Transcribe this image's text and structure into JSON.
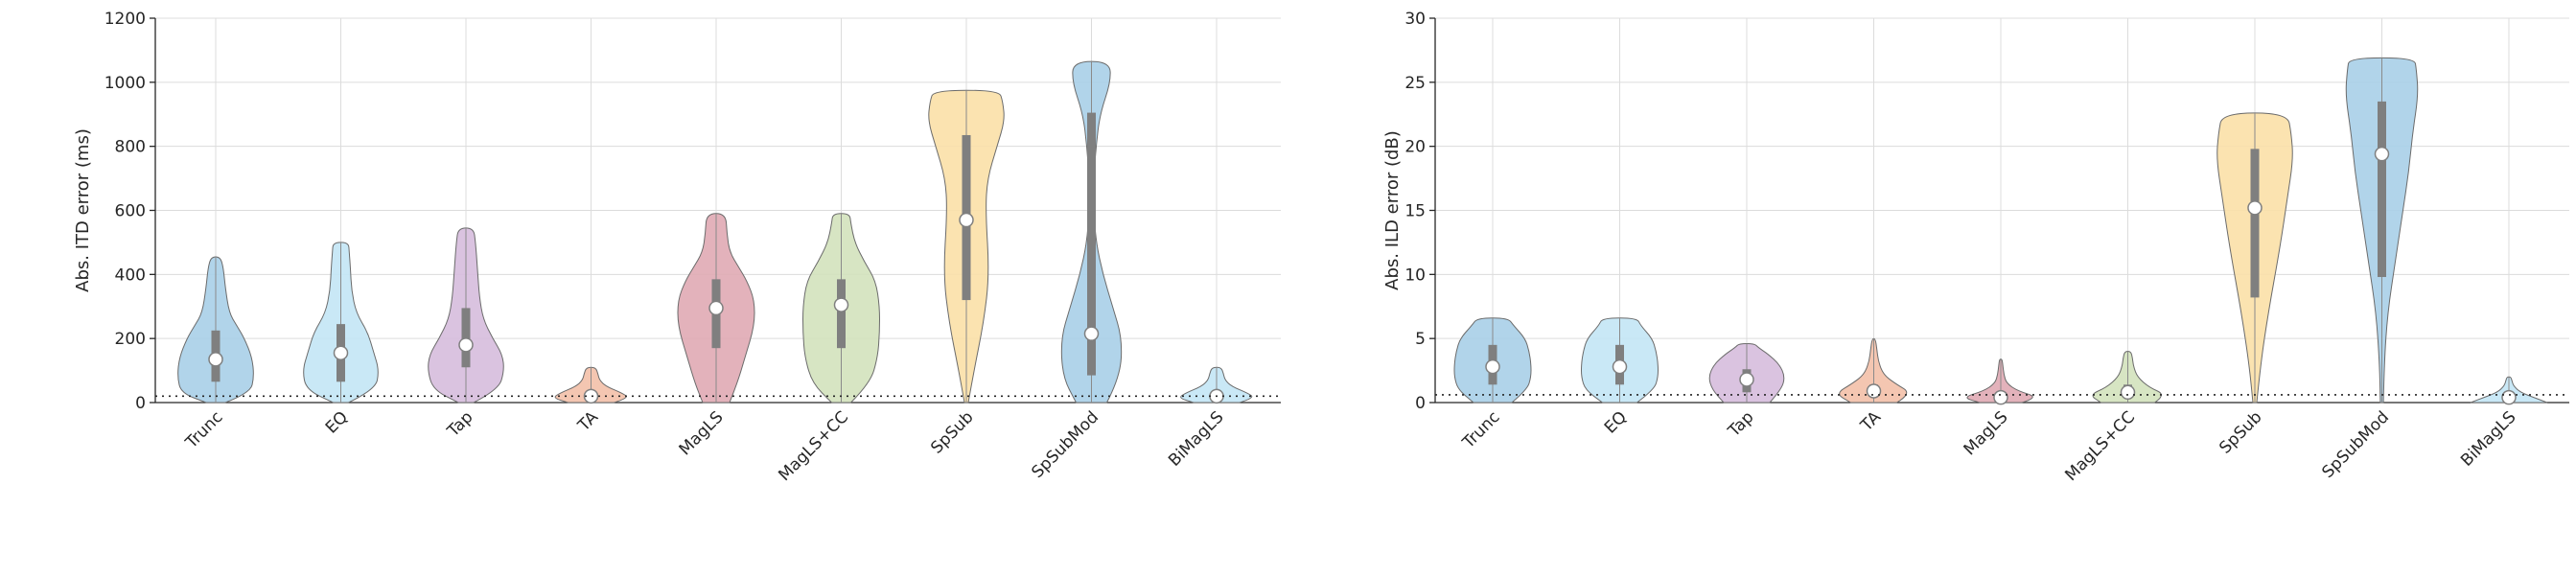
{
  "chart_data": [
    {
      "type": "violin",
      "title": "",
      "xlabel": "",
      "ylabel": "Abs. ITD error (ms)",
      "ylim": [
        0,
        1200
      ],
      "yticks": [
        0,
        200,
        400,
        600,
        800,
        1000,
        1200
      ],
      "grid": true,
      "threshold": 20,
      "categories": [
        "Trunc",
        "EQ",
        "Tap",
        "TA",
        "MagLS",
        "MagLS+CC",
        "SpSub",
        "SpSubMod",
        "BiMagLS"
      ],
      "colors": [
        "#a9cfe8",
        "#c3e6f5",
        "#d6bcdd",
        "#f3c0a9",
        "#e0aab4",
        "#d3e2bd",
        "#fbe0a7",
        "#a9cfe8",
        "#c3e6f5"
      ],
      "max": [
        455,
        500,
        545,
        110,
        590,
        590,
        975,
        1065,
        110
      ],
      "min": [
        0,
        0,
        0,
        0,
        0,
        0,
        0,
        0,
        0
      ],
      "q1": [
        65,
        65,
        110,
        15,
        170,
        170,
        320,
        85,
        15
      ],
      "median": [
        135,
        155,
        180,
        20,
        295,
        305,
        570,
        215,
        20
      ],
      "q3": [
        225,
        245,
        295,
        30,
        385,
        385,
        835,
        905,
        30
      ],
      "density": [
        [
          [
            0,
            0.25
          ],
          [
            30,
            0.9
          ],
          [
            80,
            1
          ],
          [
            140,
            0.95
          ],
          [
            200,
            0.75
          ],
          [
            240,
            0.55
          ],
          [
            280,
            0.35
          ],
          [
            360,
            0.25
          ],
          [
            420,
            0.2
          ],
          [
            455,
            0.12
          ]
        ],
        [
          [
            0,
            0.2
          ],
          [
            40,
            0.9
          ],
          [
            100,
            1
          ],
          [
            160,
            0.85
          ],
          [
            220,
            0.7
          ],
          [
            280,
            0.4
          ],
          [
            350,
            0.28
          ],
          [
            420,
            0.25
          ],
          [
            470,
            0.22
          ],
          [
            500,
            0.2
          ]
        ],
        [
          [
            0,
            0.2
          ],
          [
            40,
            0.85
          ],
          [
            100,
            1
          ],
          [
            150,
            0.95
          ],
          [
            200,
            0.7
          ],
          [
            260,
            0.45
          ],
          [
            330,
            0.35
          ],
          [
            420,
            0.3
          ],
          [
            500,
            0.25
          ],
          [
            545,
            0.2
          ]
        ],
        [
          [
            0,
            0.6
          ],
          [
            15,
            1
          ],
          [
            30,
            0.8
          ],
          [
            50,
            0.4
          ],
          [
            70,
            0.22
          ],
          [
            90,
            0.18
          ],
          [
            110,
            0.12
          ]
        ],
        [
          [
            0,
            0.35
          ],
          [
            60,
            0.55
          ],
          [
            140,
            0.75
          ],
          [
            240,
            1
          ],
          [
            320,
            1
          ],
          [
            380,
            0.8
          ],
          [
            420,
            0.6
          ],
          [
            470,
            0.35
          ],
          [
            530,
            0.28
          ],
          [
            590,
            0.25
          ]
        ],
        [
          [
            0,
            0.25
          ],
          [
            60,
            0.75
          ],
          [
            140,
            0.95
          ],
          [
            220,
            1
          ],
          [
            300,
            1
          ],
          [
            380,
            0.9
          ],
          [
            440,
            0.6
          ],
          [
            500,
            0.35
          ],
          [
            560,
            0.25
          ],
          [
            590,
            0.22
          ]
        ],
        [
          [
            0,
            0.05
          ],
          [
            100,
            0.2
          ],
          [
            250,
            0.45
          ],
          [
            400,
            0.6
          ],
          [
            600,
            0.5
          ],
          [
            700,
            0.55
          ],
          [
            800,
            0.8
          ],
          [
            880,
            1
          ],
          [
            940,
            0.95
          ],
          [
            975,
            0.85
          ]
        ],
        [
          [
            0,
            0.4
          ],
          [
            80,
            0.75
          ],
          [
            200,
            0.8
          ],
          [
            300,
            0.55
          ],
          [
            400,
            0.3
          ],
          [
            500,
            0.12
          ],
          [
            600,
            0.06
          ],
          [
            700,
            0.06
          ],
          [
            800,
            0.12
          ],
          [
            900,
            0.22
          ],
          [
            1000,
            0.5
          ],
          [
            1065,
            0.48
          ]
        ],
        [
          [
            0,
            0.6
          ],
          [
            15,
            1
          ],
          [
            30,
            0.8
          ],
          [
            50,
            0.4
          ],
          [
            70,
            0.22
          ],
          [
            90,
            0.18
          ],
          [
            110,
            0.12
          ]
        ]
      ]
    },
    {
      "type": "violin",
      "title": "",
      "xlabel": "",
      "ylabel": "Abs. ILD error (dB)",
      "ylim": [
        0,
        30
      ],
      "yticks": [
        0,
        5,
        10,
        15,
        20,
        25,
        30
      ],
      "grid": true,
      "threshold": 0.6,
      "categories": [
        "Trunc",
        "EQ",
        "Tap",
        "TA",
        "MagLS",
        "MagLS+CC",
        "SpSub",
        "SpSubMod",
        "BiMagLS"
      ],
      "colors": [
        "#a9cfe8",
        "#c3e6f5",
        "#d6bcdd",
        "#f3c0a9",
        "#e0aab4",
        "#d3e2bd",
        "#fbe0a7",
        "#a9cfe8",
        "#c3e6f5"
      ],
      "max": [
        6.6,
        6.6,
        4.6,
        5.0,
        3.4,
        4.0,
        22.6,
        26.9,
        2.0
      ],
      "min": [
        0,
        0,
        0,
        0,
        0,
        0,
        0,
        0,
        0
      ],
      "q1": [
        1.4,
        1.4,
        0.8,
        0.5,
        0.2,
        0.4,
        8.2,
        9.8,
        0.2
      ],
      "median": [
        2.8,
        2.8,
        1.8,
        0.9,
        0.4,
        0.8,
        15.2,
        19.4,
        0.4
      ],
      "q3": [
        4.5,
        4.5,
        2.6,
        1.4,
        0.7,
        1.4,
        19.8,
        23.5,
        0.7
      ],
      "density": [
        [
          [
            0,
            0.5
          ],
          [
            1,
            0.9
          ],
          [
            2,
            1
          ],
          [
            3,
            1
          ],
          [
            4,
            0.95
          ],
          [
            5,
            0.85
          ],
          [
            6,
            0.55
          ],
          [
            6.6,
            0.4
          ]
        ],
        [
          [
            0,
            0.45
          ],
          [
            1,
            0.9
          ],
          [
            2,
            1
          ],
          [
            3,
            1
          ],
          [
            4,
            0.95
          ],
          [
            5,
            0.85
          ],
          [
            6,
            0.55
          ],
          [
            6.6,
            0.45
          ]
        ],
        [
          [
            0,
            0.6
          ],
          [
            1,
            0.9
          ],
          [
            2,
            1
          ],
          [
            3,
            0.85
          ],
          [
            3.8,
            0.55
          ],
          [
            4.3,
            0.3
          ],
          [
            4.6,
            0.2
          ]
        ],
        [
          [
            0,
            0.6
          ],
          [
            0.7,
            1
          ],
          [
            1.5,
            0.55
          ],
          [
            2.2,
            0.25
          ],
          [
            3.2,
            0.12
          ],
          [
            4.2,
            0.08
          ],
          [
            5,
            0.04
          ]
        ],
        [
          [
            0,
            0.55
          ],
          [
            0.4,
            1
          ],
          [
            0.9,
            0.45
          ],
          [
            1.5,
            0.15
          ],
          [
            2.2,
            0.08
          ],
          [
            3,
            0.05
          ],
          [
            3.4,
            0.03
          ]
        ],
        [
          [
            0,
            0.7
          ],
          [
            0.6,
            1
          ],
          [
            1.2,
            0.55
          ],
          [
            2,
            0.25
          ],
          [
            2.8,
            0.15
          ],
          [
            3.5,
            0.12
          ],
          [
            4,
            0.08
          ]
        ],
        [
          [
            0,
            0.05
          ],
          [
            3,
            0.15
          ],
          [
            7,
            0.35
          ],
          [
            12,
            0.65
          ],
          [
            16,
            0.85
          ],
          [
            19,
            1
          ],
          [
            21,
            0.95
          ],
          [
            22.6,
            0.85
          ]
        ],
        [
          [
            0,
            0.04
          ],
          [
            3,
            0.06
          ],
          [
            7,
            0.15
          ],
          [
            11,
            0.35
          ],
          [
            15,
            0.55
          ],
          [
            18,
            0.7
          ],
          [
            21,
            0.8
          ],
          [
            24,
            0.95
          ],
          [
            26,
            0.9
          ],
          [
            26.9,
            0.85
          ]
        ],
        [
          [
            0,
            1
          ],
          [
            0.4,
            0.65
          ],
          [
            0.8,
            0.3
          ],
          [
            1.3,
            0.12
          ],
          [
            1.7,
            0.08
          ],
          [
            2,
            0.05
          ]
        ]
      ]
    }
  ]
}
